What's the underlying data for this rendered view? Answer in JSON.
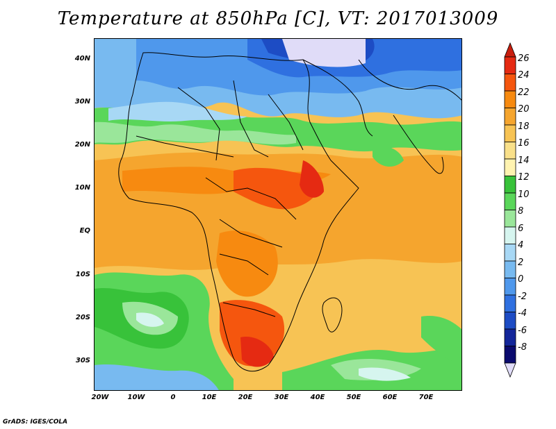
{
  "title": "Temperature at 850hPa [C], VT: 2017013009",
  "credit": "GrADS: IGES/COLA",
  "lat_labels": [
    "40N",
    "30N",
    "20N",
    "10N",
    "EQ",
    "10S",
    "20S",
    "30S"
  ],
  "lon_labels": [
    "20W",
    "10W",
    "0",
    "10E",
    "20E",
    "30E",
    "40E",
    "50E",
    "60E",
    "70E"
  ],
  "colorbar": {
    "labels": [
      "26",
      "24",
      "22",
      "20",
      "18",
      "16",
      "14",
      "12",
      "10",
      "8",
      "6",
      "4",
      "2",
      "0",
      "-2",
      "-4",
      "-6",
      "-8"
    ],
    "colors": [
      "#e52a12",
      "#f5560e",
      "#f78a10",
      "#f5a52e",
      "#f7c354",
      "#f9e08a",
      "#fff3b0",
      "#38c23a",
      "#5ad65a",
      "#9ae69a",
      "#d6f5ef",
      "#a8d8f5",
      "#78baf0",
      "#4f98ec",
      "#2f70e0",
      "#1d4cc4",
      "#13269a",
      "#0a0a6e"
    ],
    "top_arrow_color": "#c81e0e",
    "bottom_arrow_color": "#e0dcf8"
  }
}
